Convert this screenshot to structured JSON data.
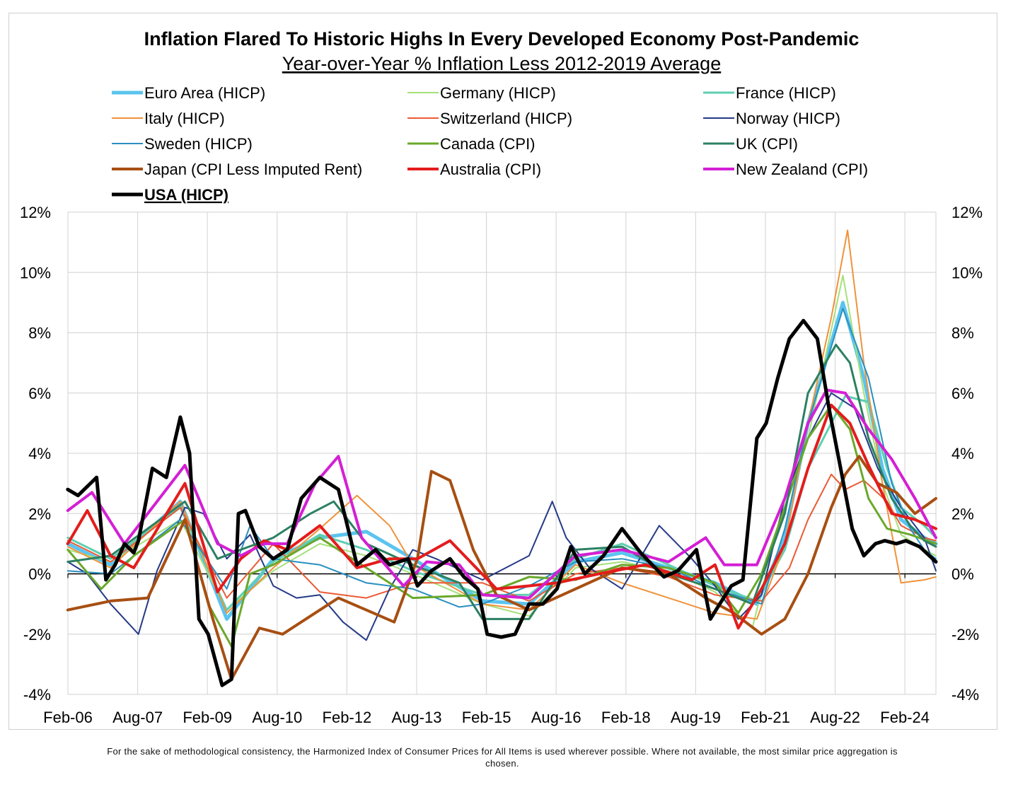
{
  "chart_data": {
    "type": "line",
    "title": "Inflation Flared To Historic Highs In Every Developed Economy Post-Pandemic",
    "subtitle": "Year-over-Year % Inflation Less 2012-2019 Average",
    "xlabel": "",
    "ylabel": "",
    "x_tick_labels": [
      "Feb-06",
      "Aug-07",
      "Feb-09",
      "Aug-10",
      "Feb-12",
      "Aug-13",
      "Feb-15",
      "Aug-16",
      "Feb-18",
      "Aug-19",
      "Feb-21",
      "Aug-22",
      "Feb-24"
    ],
    "x_tick_positions": [
      2006.083,
      2007.583,
      2009.083,
      2010.583,
      2012.083,
      2013.583,
      2015.083,
      2016.583,
      2018.083,
      2019.583,
      2021.083,
      2022.583,
      2024.083
    ],
    "x_range": [
      2006.083,
      2024.75
    ],
    "y_ticks": [
      -4,
      -2,
      0,
      2,
      4,
      6,
      8,
      10,
      12
    ],
    "y_tick_labels": [
      "-4%",
      "-2%",
      "0%",
      "2%",
      "4%",
      "6%",
      "8%",
      "10%",
      "12%"
    ],
    "ylim": [
      -4,
      12
    ],
    "grid": true,
    "legend_position": "top",
    "series": [
      {
        "name": "Euro Area (HICP)",
        "color": "#5bc4ee",
        "width": 5,
        "x": [
          2006.08,
          2007,
          2008.5,
          2009.5,
          2010.5,
          2011.5,
          2012.5,
          2013.5,
          2015,
          2016,
          2017,
          2018,
          2019,
          2020,
          2020.9,
          2021.5,
          2022,
          2022.75,
          2023.2,
          2023.6,
          2024,
          2024.5,
          2024.75
        ],
        "y": [
          1.0,
          0.3,
          2.4,
          -1.5,
          0.5,
          1.2,
          1.4,
          0.5,
          -0.9,
          -1.0,
          0.4,
          0.7,
          0.2,
          -0.3,
          -1.0,
          1.2,
          5.0,
          9.0,
          6.5,
          3.5,
          1.8,
          1.2,
          1.0
        ]
      },
      {
        "name": "Germany (HICP)",
        "color": "#a6e07a",
        "width": 2,
        "x": [
          2006.08,
          2007,
          2008.5,
          2009.5,
          2010.5,
          2011.5,
          2012.5,
          2013.5,
          2015,
          2016,
          2017,
          2018,
          2019,
          2020,
          2020.8,
          2021.5,
          2022,
          2022.75,
          2023.2,
          2023.6,
          2024,
          2024.5,
          2024.75
        ],
        "y": [
          0.8,
          0.4,
          1.8,
          -1.2,
          0.1,
          1.0,
          0.6,
          0.0,
          -1.0,
          -1.4,
          0.2,
          0.4,
          0.1,
          -0.6,
          -1.8,
          2.5,
          4.5,
          9.9,
          6.0,
          3.0,
          1.3,
          0.8,
          0.6
        ]
      },
      {
        "name": "France (HICP)",
        "color": "#5dcfb0",
        "width": 3,
        "x": [
          2006.08,
          2007,
          2008.5,
          2009.5,
          2010.5,
          2011.5,
          2012.5,
          2013.5,
          2015,
          2016,
          2017,
          2018,
          2019,
          2020,
          2020.9,
          2021.5,
          2022,
          2022.8,
          2023.3,
          2023.7,
          2024,
          2024.5,
          2024.75
        ],
        "y": [
          1.2,
          0.5,
          2.2,
          -1.2,
          0.4,
          1.3,
          0.8,
          0.1,
          -0.7,
          -0.7,
          0.5,
          1.0,
          0.3,
          -0.4,
          -0.9,
          0.8,
          3.5,
          5.9,
          5.7,
          3.5,
          2.2,
          1.6,
          1.2
        ]
      },
      {
        "name": "Italy (HICP)",
        "color": "#f0923b",
        "width": 2,
        "x": [
          2006.08,
          2007,
          2008.5,
          2009.5,
          2010.5,
          2011.5,
          2012.3,
          2013,
          2013.5,
          2015,
          2016,
          2017,
          2018,
          2019,
          2020,
          2020.9,
          2021.5,
          2022,
          2022.5,
          2022.85,
          2023.2,
          2023.6,
          2024,
          2024.5,
          2024.75
        ],
        "y": [
          0.9,
          0.2,
          2.4,
          -1.3,
          0.2,
          1.5,
          2.6,
          1.6,
          0.3,
          -1.0,
          -1.2,
          0.3,
          -0.3,
          -0.8,
          -1.3,
          -1.5,
          1.0,
          5.0,
          8.5,
          11.4,
          7.0,
          3.0,
          -0.3,
          -0.2,
          -0.1
        ]
      },
      {
        "name": "Switzerland (HICP)",
        "color": "#ea5a35",
        "width": 2,
        "x": [
          2006.08,
          2007,
          2008.5,
          2009.5,
          2010.5,
          2011.5,
          2012.5,
          2013.5,
          2015,
          2016,
          2017,
          2018,
          2019,
          2020,
          2021,
          2021.6,
          2022,
          2022.5,
          2022.8,
          2023.2,
          2023.7,
          2024,
          2024.5,
          2024.75
        ],
        "y": [
          1.1,
          0.4,
          2.2,
          -0.8,
          1.0,
          -0.6,
          -0.8,
          -0.3,
          -0.3,
          -0.9,
          0.0,
          0.2,
          -0.1,
          -0.7,
          -0.9,
          0.2,
          1.8,
          3.3,
          2.8,
          3.1,
          2.4,
          1.6,
          1.2,
          1.1
        ]
      },
      {
        "name": "Norway (HICP)",
        "color": "#253a86",
        "width": 2,
        "x": [
          2006.08,
          2006.5,
          2007,
          2007.6,
          2008,
          2008.6,
          2009,
          2009.5,
          2010,
          2010.5,
          2011,
          2011.5,
          2012,
          2012.5,
          2013,
          2013.5,
          2014,
          2015,
          2016,
          2016.5,
          2016.8,
          2017.3,
          2018,
          2018.8,
          2019.5,
          2020,
          2020.5,
          2021,
          2021.5,
          2022,
          2022.5,
          2023,
          2023.5,
          2024,
          2024.5,
          2024.75
        ],
        "y": [
          0.4,
          0.0,
          -1.0,
          -2.0,
          0.1,
          2.2,
          2.0,
          0.5,
          1.3,
          -0.4,
          -0.8,
          -0.7,
          -1.6,
          -2.2,
          -0.5,
          0.8,
          0.5,
          -0.2,
          0.6,
          2.4,
          1.2,
          0.2,
          -0.5,
          1.6,
          0.5,
          -0.4,
          -1.5,
          -0.7,
          2.5,
          4.5,
          6.0,
          5.5,
          3.5,
          2.2,
          1.2,
          0.1
        ]
      },
      {
        "name": "Sweden (HICP)",
        "color": "#2a8fc0",
        "width": 2,
        "x": [
          2006.08,
          2007,
          2008.5,
          2009.5,
          2010,
          2010.5,
          2011.5,
          2012.5,
          2013.5,
          2014.5,
          2015,
          2016,
          2017,
          2018,
          2019,
          2020,
          2021,
          2021.5,
          2022,
          2022.75,
          2023.3,
          2023.8,
          2024.2,
          2024.5,
          2024.75
        ],
        "y": [
          0.1,
          0.0,
          1.8,
          -0.5,
          1.6,
          0.5,
          0.3,
          -0.3,
          -0.5,
          -1.1,
          -1.0,
          -0.4,
          0.4,
          0.5,
          0.2,
          -0.5,
          -1.0,
          1.5,
          5.0,
          8.8,
          6.5,
          3.0,
          1.5,
          0.8,
          0.5
        ]
      },
      {
        "name": "Canada (CPI)",
        "color": "#6aa82a",
        "width": 3,
        "x": [
          2006.08,
          2006.8,
          2007.5,
          2008.6,
          2009.1,
          2009.6,
          2010,
          2010.5,
          2011.5,
          2012.5,
          2013.5,
          2015,
          2016,
          2017,
          2018,
          2019,
          2020,
          2020.5,
          2021,
          2021.5,
          2022,
          2022.5,
          2022.9,
          2023.3,
          2023.7,
          2024.2,
          2024.75
        ],
        "y": [
          0.8,
          -0.5,
          0.6,
          1.8,
          -1.0,
          -2.4,
          0.0,
          0.3,
          1.2,
          0.2,
          -0.8,
          -0.7,
          -0.1,
          -0.2,
          0.3,
          0.2,
          -0.3,
          -1.3,
          0.0,
          2.2,
          4.5,
          5.6,
          4.8,
          2.5,
          1.5,
          1.3,
          1.0
        ]
      },
      {
        "name": "UK (CPI)",
        "color": "#2c8062",
        "width": 3,
        "x": [
          2006.08,
          2007,
          2008.6,
          2009.3,
          2009.8,
          2010.5,
          2011.3,
          2011.8,
          2012.5,
          2013.5,
          2014.5,
          2015,
          2016,
          2017,
          2018,
          2019,
          2020,
          2020.8,
          2021.5,
          2022,
          2022.6,
          2022.9,
          2023.3,
          2023.8,
          2024.2,
          2024.5,
          2024.75
        ],
        "y": [
          0.4,
          0.6,
          2.4,
          0.5,
          0.8,
          1.2,
          2.0,
          2.4,
          1.0,
          0.3,
          -0.3,
          -1.5,
          -1.5,
          0.8,
          0.9,
          0.0,
          -0.5,
          -1.0,
          2.0,
          6.0,
          7.6,
          7.0,
          4.5,
          2.5,
          1.6,
          1.1,
          0.9
        ]
      },
      {
        "name": "Japan (CPI Less Imputed Rent)",
        "color": "#a74f12",
        "width": 4,
        "x": [
          2006.08,
          2007,
          2007.8,
          2008.6,
          2009.2,
          2009.6,
          2010.2,
          2010.7,
          2011.3,
          2011.9,
          2012.5,
          2013.1,
          2013.6,
          2013.9,
          2014.3,
          2014.8,
          2015.3,
          2016,
          2017,
          2018,
          2019,
          2019.8,
          2020.4,
          2021,
          2021.5,
          2022,
          2022.5,
          2022.8,
          2023.1,
          2023.5,
          2023.9,
          2024.3,
          2024.75
        ],
        "y": [
          -1.2,
          -0.9,
          -0.8,
          1.8,
          -1.5,
          -3.5,
          -1.8,
          -2.0,
          -1.4,
          -0.8,
          -1.2,
          -1.6,
          0.5,
          3.4,
          3.1,
          0.8,
          -0.7,
          -1.2,
          -0.5,
          0.2,
          0.0,
          -0.8,
          -1.3,
          -2.0,
          -1.5,
          0.0,
          2.2,
          3.3,
          3.9,
          3.0,
          2.7,
          2.0,
          2.5
        ]
      },
      {
        "name": "Australia (CPI)",
        "color": "#e41c1c",
        "width": 4,
        "x": [
          2006.08,
          2006.5,
          2007,
          2007.5,
          2008.6,
          2009.3,
          2009.8,
          2010.3,
          2010.8,
          2011.5,
          2012.3,
          2013,
          2013.6,
          2014.3,
          2014.8,
          2015.3,
          2016,
          2016.6,
          2017.5,
          2018.5,
          2019.5,
          2020,
          2020.5,
          2021,
          2021.5,
          2022,
          2022.5,
          2022.9,
          2023.3,
          2023.8,
          2024.3,
          2024.75
        ],
        "y": [
          1.0,
          2.1,
          0.6,
          0.2,
          3.0,
          -0.6,
          0.5,
          1.1,
          0.8,
          1.6,
          0.2,
          0.5,
          0.5,
          1.1,
          0.3,
          -0.5,
          -0.4,
          -0.3,
          0.0,
          0.3,
          -0.2,
          0.3,
          -1.8,
          -0.5,
          1.0,
          3.5,
          5.6,
          5.0,
          3.6,
          2.0,
          1.8,
          1.5
        ]
      },
      {
        "name": "New Zealand (CPI)",
        "color": "#d41fd4",
        "width": 4,
        "x": [
          2006.08,
          2006.6,
          2007.3,
          2008.6,
          2009.3,
          2009.8,
          2010.3,
          2010.8,
          2011.4,
          2011.9,
          2012.4,
          2013.3,
          2013.8,
          2014.5,
          2015,
          2016,
          2017,
          2018,
          2019,
          2019.8,
          2020.2,
          2020.9,
          2021.5,
          2022,
          2022.4,
          2022.8,
          2023.3,
          2023.8,
          2024.3,
          2024.75
        ],
        "y": [
          2.1,
          2.7,
          1.0,
          3.6,
          1.0,
          0.6,
          1.0,
          1.0,
          3.0,
          3.9,
          1.2,
          -0.4,
          0.4,
          0.3,
          -0.7,
          -0.8,
          0.6,
          0.8,
          0.4,
          1.2,
          0.3,
          0.3,
          2.5,
          5.0,
          6.1,
          6.0,
          4.8,
          3.8,
          2.5,
          1.2
        ]
      },
      {
        "name": "USA (HICP)",
        "color": "#000000",
        "width": 5,
        "x": [
          2006.08,
          2006.3,
          2006.7,
          2006.9,
          2007.1,
          2007.3,
          2007.5,
          2007.6,
          2007.9,
          2008.2,
          2008.5,
          2008.7,
          2008.9,
          2009.1,
          2009.4,
          2009.6,
          2009.75,
          2009.9,
          2010.2,
          2010.5,
          2010.8,
          2011.1,
          2011.5,
          2011.9,
          2012.3,
          2012.7,
          2013.0,
          2013.4,
          2013.6,
          2013.9,
          2014.3,
          2014.6,
          2014.9,
          2015.1,
          2015.4,
          2015.7,
          2016.0,
          2016.3,
          2016.6,
          2016.9,
          2017.2,
          2017.6,
          2018.0,
          2018.4,
          2018.9,
          2019.2,
          2019.6,
          2019.9,
          2020.1,
          2020.35,
          2020.6,
          2020.9,
          2021.1,
          2021.35,
          2021.6,
          2021.9,
          2022.2,
          2022.45,
          2022.7,
          2022.95,
          2023.2,
          2023.45,
          2023.65,
          2023.9,
          2024.1,
          2024.4,
          2024.75
        ],
        "y": [
          2.8,
          2.6,
          3.2,
          -0.2,
          0.3,
          1.0,
          0.7,
          1.1,
          3.5,
          3.2,
          5.2,
          4.0,
          -1.5,
          -2.0,
          -3.7,
          -3.5,
          2.0,
          2.1,
          0.9,
          0.5,
          0.8,
          2.5,
          3.2,
          2.8,
          0.3,
          0.8,
          0.3,
          0.5,
          -0.4,
          0.1,
          0.5,
          -0.1,
          -0.5,
          -2.0,
          -2.1,
          -2.0,
          -1.0,
          -1.0,
          -0.5,
          0.9,
          0.0,
          0.6,
          1.5,
          0.7,
          -0.1,
          0.1,
          0.8,
          -1.5,
          -1.0,
          -0.4,
          -0.2,
          4.5,
          5.0,
          6.5,
          7.8,
          8.4,
          7.8,
          5.5,
          3.5,
          1.5,
          0.6,
          1.0,
          1.1,
          1.0,
          1.1,
          0.9,
          0.4
        ]
      }
    ]
  }
}
